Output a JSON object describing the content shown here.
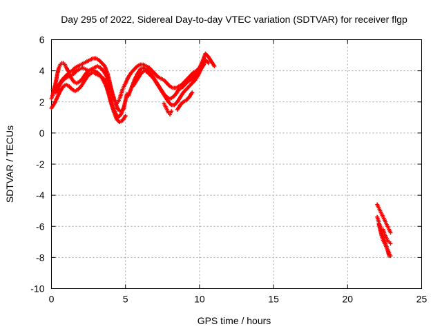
{
  "chart_data": {
    "type": "scatter",
    "title": "Day 295 of 2022, Sidereal Day-to-day VTEC variation (SDTVAR) for receiver flgp",
    "xlabel": "GPS time / hours",
    "ylabel": "SDTVAR / TECUs",
    "xlim": [
      0,
      25
    ],
    "ylim": [
      -10,
      6
    ],
    "xticks": [
      0,
      5,
      10,
      15,
      20,
      25
    ],
    "yticks": [
      -10,
      -8,
      -6,
      -4,
      -2,
      0,
      2,
      4,
      6
    ],
    "xtick_labels": [
      "0",
      "5",
      "10",
      "15",
      "20",
      "25"
    ],
    "ytick_labels": [
      "-10",
      "-8",
      "-6",
      "-4",
      "-2",
      "0",
      "2",
      "4",
      "6"
    ],
    "grid": true,
    "marker": "+",
    "color": "#ff0000",
    "series": [
      {
        "x": [
          0.0,
          0.1,
          0.2,
          0.3,
          0.4,
          0.5,
          0.6,
          0.7,
          0.8,
          0.9,
          1.0,
          1.2,
          1.4,
          1.6,
          1.8,
          2.0,
          2.2,
          2.4,
          2.6,
          2.8,
          3.0,
          3.2,
          3.4,
          3.6,
          3.8,
          4.0,
          4.1,
          4.2,
          4.3,
          4.4,
          4.5,
          4.6,
          4.7,
          4.8,
          4.9,
          5.0
        ],
        "y": [
          2.2,
          2.5,
          2.9,
          3.3,
          3.8,
          4.2,
          4.4,
          4.5,
          4.5,
          4.4,
          4.2,
          3.9,
          4.0,
          4.2,
          4.3,
          4.4,
          4.5,
          4.6,
          4.7,
          4.8,
          4.8,
          4.7,
          4.5,
          4.3,
          3.8,
          3.0,
          2.6,
          2.2,
          2.0,
          1.9,
          2.0,
          2.2,
          2.5,
          2.8,
          3.0,
          3.2
        ]
      },
      {
        "x": [
          0.0,
          0.2,
          0.4,
          0.6,
          0.8,
          1.0,
          1.2,
          1.4,
          1.6,
          1.8,
          2.0,
          2.2,
          2.4,
          2.6,
          2.8,
          3.0,
          3.2,
          3.4,
          3.6,
          3.8,
          4.0,
          4.2,
          4.4,
          4.6,
          4.8,
          5.0
        ],
        "y": [
          1.6,
          1.9,
          2.3,
          2.7,
          3.0,
          3.1,
          3.0,
          2.8,
          2.7,
          2.8,
          3.0,
          3.3,
          3.6,
          3.8,
          3.9,
          3.8,
          3.7,
          3.6,
          3.4,
          2.8,
          2.0,
          1.4,
          0.9,
          0.7,
          0.8,
          1.1
        ]
      },
      {
        "x": [
          0.3,
          0.5,
          0.7,
          0.9,
          1.1,
          1.3,
          1.5,
          1.7,
          1.9,
          2.1,
          2.3,
          2.5,
          2.7,
          2.9,
          3.1,
          3.3,
          3.5,
          3.7,
          3.9,
          4.1,
          4.3,
          4.5,
          4.7,
          4.9
        ],
        "y": [
          2.6,
          3.0,
          3.3,
          3.5,
          3.6,
          3.7,
          3.8,
          4.0,
          4.1,
          4.2,
          4.1,
          4.0,
          4.1,
          4.2,
          4.3,
          4.2,
          4.0,
          3.7,
          3.2,
          2.6,
          2.0,
          1.5,
          1.4,
          1.6
        ]
      },
      {
        "x": [
          0.1,
          0.3,
          0.5,
          0.7,
          0.9,
          1.1,
          1.3,
          1.5,
          1.7,
          1.9,
          2.1,
          2.3,
          2.5,
          2.7,
          2.9,
          3.1,
          3.3,
          3.5,
          3.7,
          3.9,
          4.1,
          4.3,
          4.5,
          4.7,
          4.9,
          5.1
        ],
        "y": [
          2.8,
          2.9,
          3.1,
          3.4,
          3.6,
          3.8,
          3.6,
          3.3,
          3.2,
          3.3,
          3.5,
          3.8,
          4.0,
          4.1,
          4.0,
          3.9,
          3.7,
          3.4,
          3.0,
          2.4,
          1.8,
          1.3,
          1.0,
          1.2,
          1.7,
          2.5
        ]
      },
      {
        "x": [
          5.0,
          5.2,
          5.4,
          5.6,
          5.8,
          6.0,
          6.2,
          6.4,
          6.6,
          6.8,
          7.0,
          7.2,
          7.4,
          7.6,
          7.8,
          8.0,
          8.2,
          8.4,
          8.6,
          8.8,
          9.0,
          9.2,
          9.4,
          9.6,
          9.8,
          10.0,
          10.2,
          10.4,
          10.6,
          10.8,
          11.0
        ],
        "y": [
          3.2,
          3.6,
          3.9,
          4.1,
          4.3,
          4.4,
          4.4,
          4.3,
          4.2,
          4.0,
          3.8,
          3.6,
          3.5,
          3.4,
          3.2,
          3.0,
          2.9,
          2.9,
          3.0,
          3.1,
          3.3,
          3.5,
          3.7,
          3.9,
          4.0,
          4.2,
          4.6,
          5.1,
          4.9,
          4.6,
          4.3
        ]
      },
      {
        "x": [
          5.2,
          5.4,
          5.6,
          5.8,
          6.0,
          6.2,
          6.4,
          6.6,
          6.8,
          7.0,
          7.2,
          7.4,
          7.6,
          7.8,
          8.0,
          8.2,
          8.4,
          8.6,
          8.8,
          9.0,
          9.2,
          9.4,
          9.6,
          9.8,
          10.0,
          10.2,
          10.4,
          10.6
        ],
        "y": [
          2.4,
          2.9,
          3.4,
          3.8,
          4.1,
          4.2,
          4.1,
          3.9,
          3.7,
          3.4,
          3.1,
          2.8,
          2.5,
          2.3,
          2.2,
          2.3,
          2.5,
          2.8,
          2.9,
          3.1,
          3.3,
          3.4,
          3.6,
          3.8,
          4.0,
          4.3,
          4.7,
          4.5
        ]
      },
      {
        "x": [
          5.5,
          5.7,
          5.9,
          6.1,
          6.3,
          6.5,
          6.7,
          6.9,
          7.1,
          7.3,
          7.5,
          7.7,
          7.9,
          8.1,
          8.3,
          8.5,
          8.7,
          8.9,
          9.1,
          9.3,
          9.5,
          9.7,
          9.9,
          10.1,
          10.3
        ],
        "y": [
          3.0,
          3.3,
          3.6,
          3.9,
          4.0,
          3.9,
          3.7,
          3.5,
          3.2,
          2.9,
          2.6,
          2.3,
          2.0,
          1.8,
          1.8,
          2.0,
          2.3,
          2.6,
          2.8,
          3.0,
          3.2,
          3.4,
          3.7,
          4.1,
          4.4
        ]
      },
      {
        "x": [
          7.6,
          7.7,
          7.8,
          7.9,
          8.0,
          8.1
        ],
        "y": [
          1.9,
          1.7,
          1.5,
          1.3,
          1.2,
          1.4
        ]
      },
      {
        "x": [
          8.5,
          8.7,
          8.9,
          9.1,
          9.3,
          9.5
        ],
        "y": [
          1.5,
          1.8,
          2.0,
          2.1,
          2.3,
          2.6
        ]
      },
      {
        "x": [
          22.0,
          22.1,
          22.2,
          22.3,
          22.4,
          22.5,
          22.6,
          22.7,
          22.8,
          22.9
        ],
        "y": [
          -4.6,
          -4.8,
          -5.0,
          -5.2,
          -5.4,
          -5.6,
          -5.8,
          -6.0,
          -6.2,
          -6.4
        ]
      },
      {
        "x": [
          22.1,
          22.2,
          22.3,
          22.4,
          22.5,
          22.6,
          22.7,
          22.8,
          22.9
        ],
        "y": [
          -5.8,
          -6.2,
          -6.6,
          -6.9,
          -7.1,
          -7.3,
          -7.5,
          -7.7,
          -7.9
        ]
      },
      {
        "x": [
          22.0,
          22.1,
          22.2,
          22.3,
          22.4,
          22.5,
          22.6,
          22.7,
          22.8
        ],
        "y": [
          -5.4,
          -5.7,
          -6.0,
          -6.3,
          -6.6,
          -6.9,
          -7.2,
          -7.5,
          -7.9
        ]
      },
      {
        "x": [
          22.4,
          22.5,
          22.6,
          22.7,
          22.8,
          22.9
        ],
        "y": [
          -6.2,
          -6.5,
          -6.7,
          -6.9,
          -7.0,
          -7.1
        ]
      }
    ]
  }
}
